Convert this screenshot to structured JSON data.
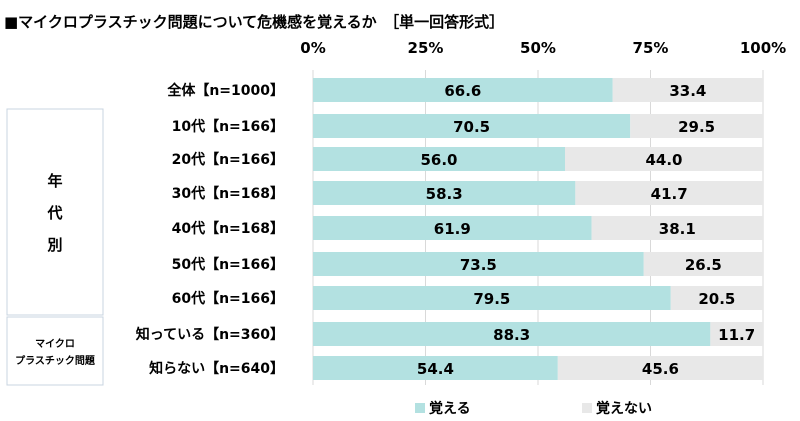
{
  "chart_data": {
    "type": "bar",
    "stacked": true,
    "orientation": "horizontal",
    "title": "■マイクロプラスチック問題について危機感を覚えるか　［単一回答形式］",
    "xlim": [
      0,
      100
    ],
    "x_ticks": [
      "0%",
      "25%",
      "50%",
      "75%",
      "100%"
    ],
    "grid": true,
    "legend_position": "bottom",
    "groups": [
      {
        "label": "",
        "rows": [
          0
        ]
      },
      {
        "label": "年代別",
        "rows": [
          1,
          2,
          3,
          4,
          5,
          6
        ]
      },
      {
        "label": "マイクロプラスチック問題",
        "rows": [
          7,
          8
        ]
      }
    ],
    "categories": [
      "全体【n=1000】",
      "10代【n=166】",
      "20代【n=166】",
      "30代【n=168】",
      "40代【n=168】",
      "50代【n=166】",
      "60代【n=166】",
      "知っている【n=360】",
      "知らない【n=640】"
    ],
    "series": [
      {
        "name": "覚える",
        "color": "#b3e1e1",
        "values": [
          66.6,
          70.5,
          56.0,
          58.3,
          61.9,
          73.5,
          79.5,
          88.3,
          54.4
        ]
      },
      {
        "name": "覚えない",
        "color": "#e8e8e8",
        "values": [
          33.4,
          29.5,
          44.0,
          41.7,
          38.1,
          26.5,
          20.5,
          11.7,
          45.6
        ]
      }
    ],
    "value_labels": [
      [
        "66.6",
        "70.5",
        "56.0",
        "58.3",
        "61.9",
        "73.5",
        "79.5",
        "88.3",
        "54.4"
      ],
      [
        "33.4",
        "29.5",
        "44.0",
        "41.7",
        "38.1",
        "26.5",
        "20.5",
        "11.7",
        "45.6"
      ]
    ]
  }
}
